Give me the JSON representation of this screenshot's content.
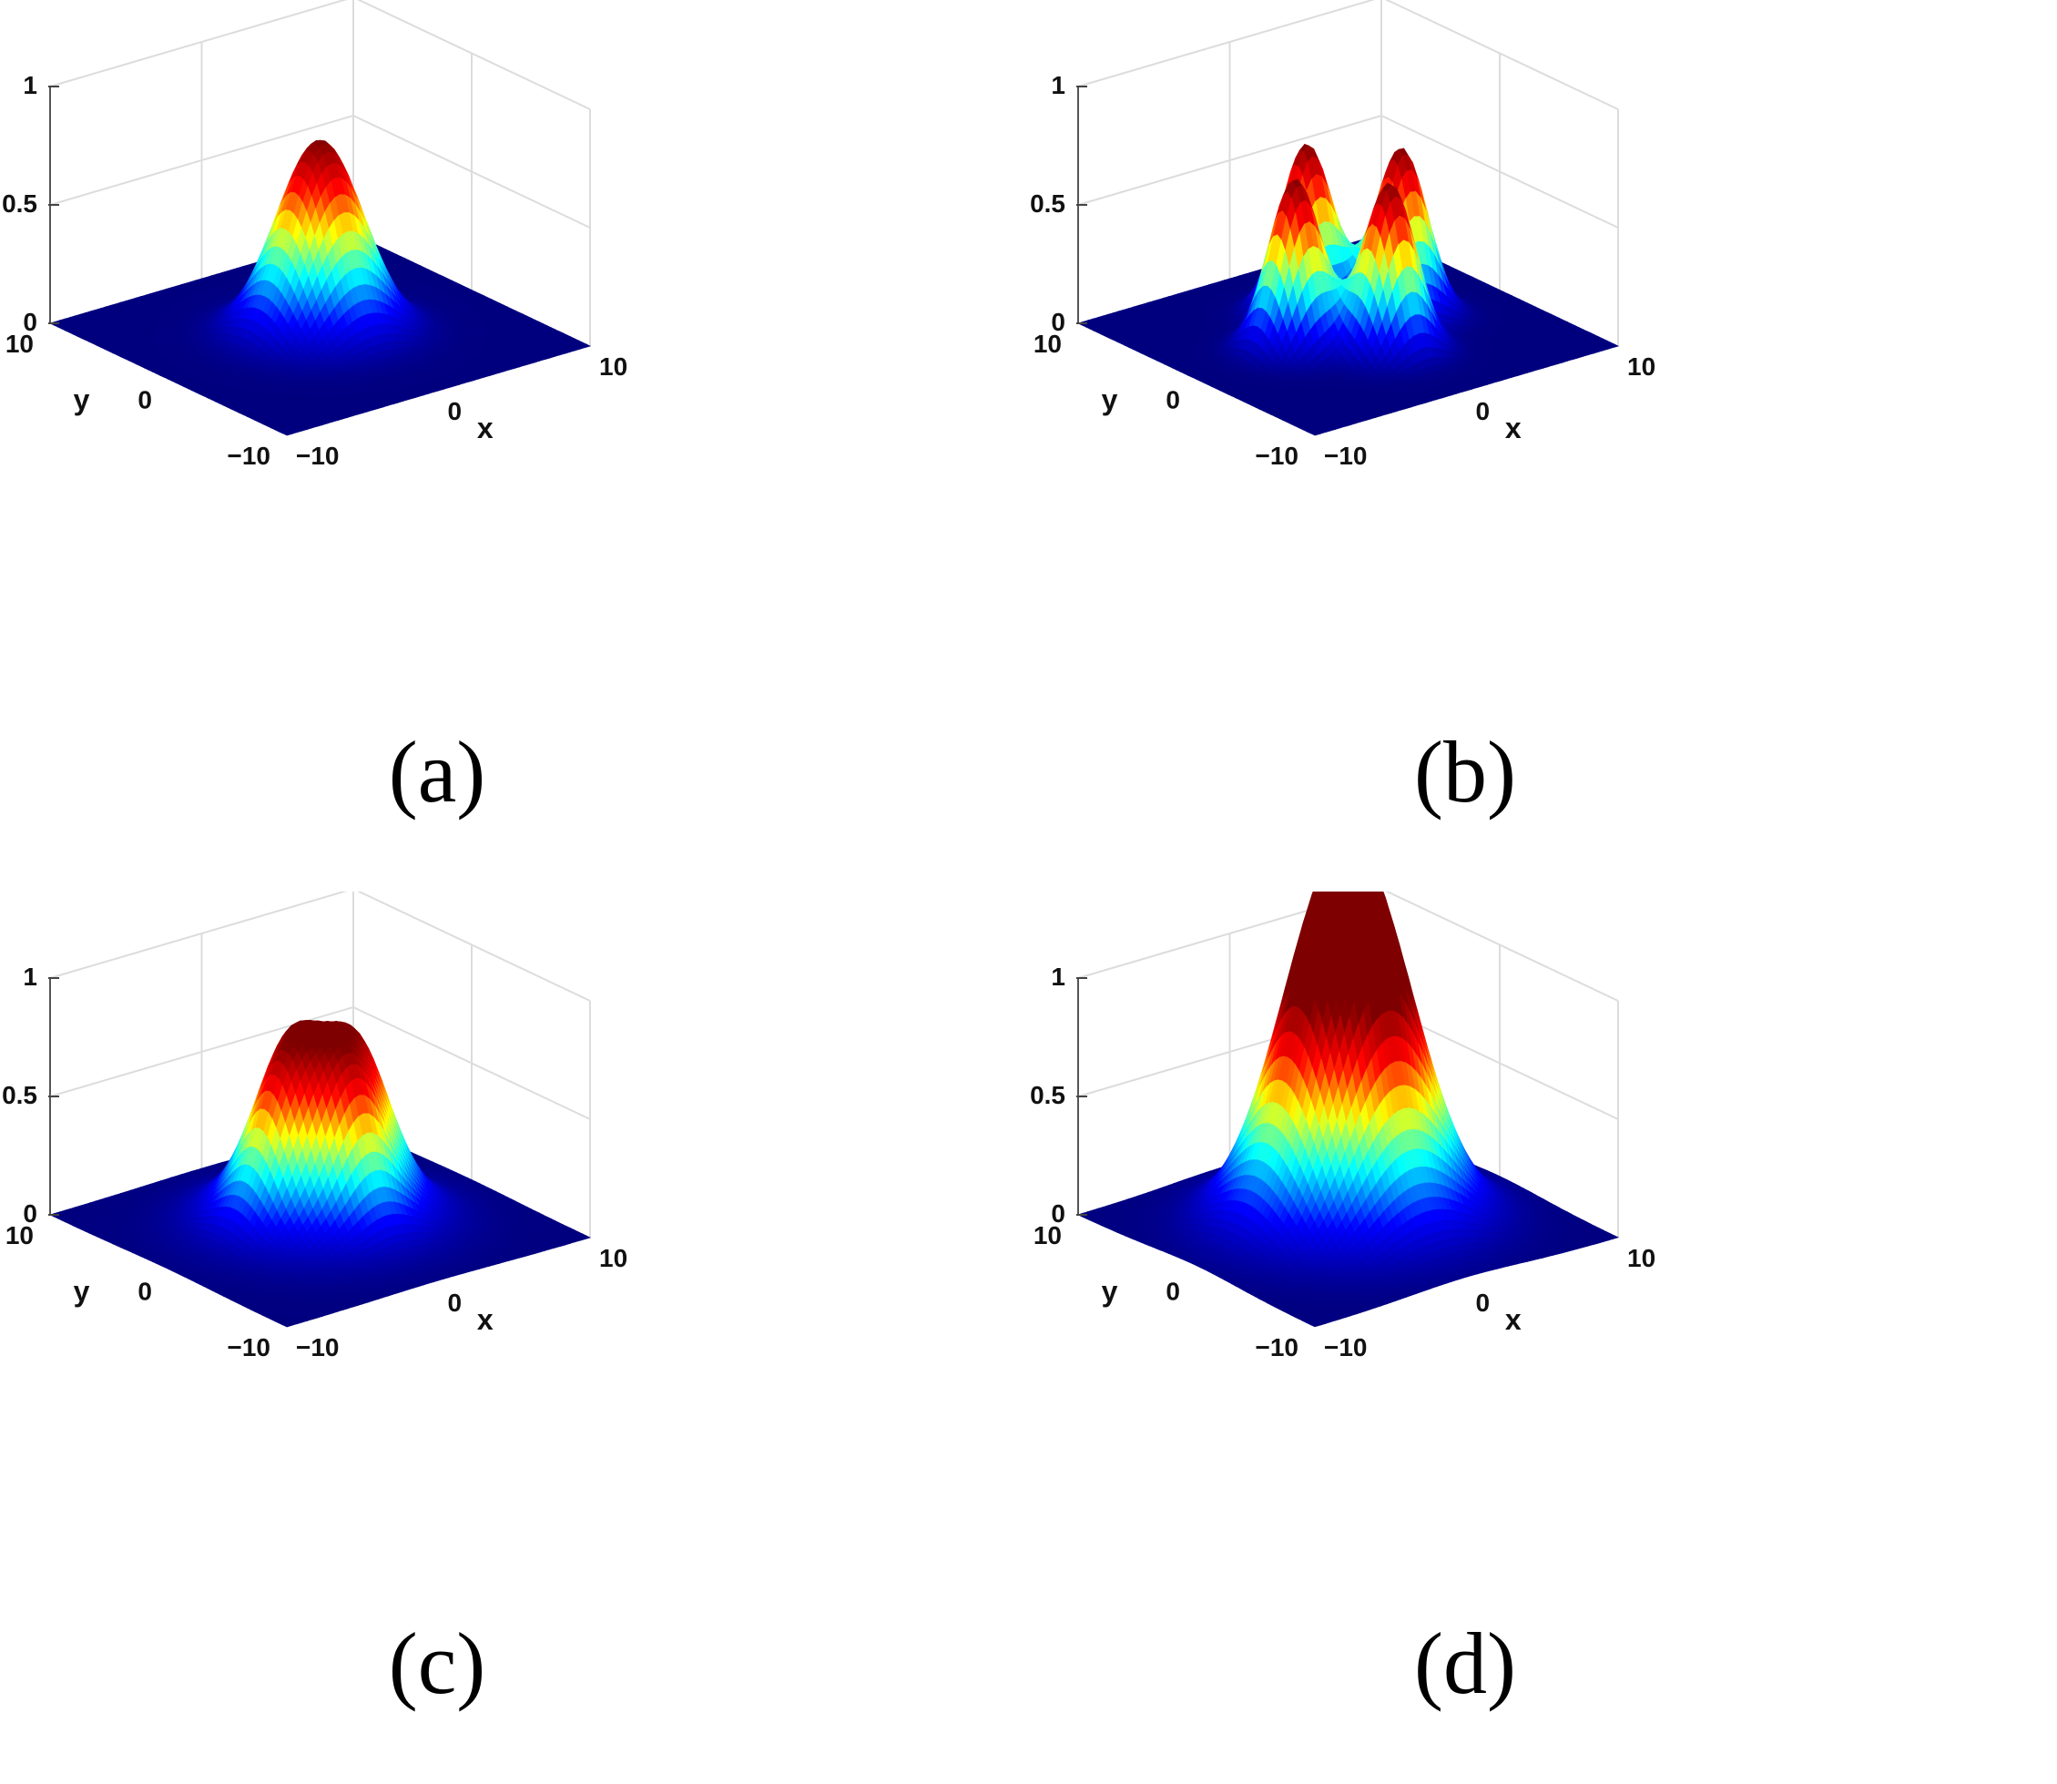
{
  "chart_data": [
    {
      "type": "surface",
      "panel": "a",
      "caption": "(a)",
      "xlabel": "x",
      "ylabel": "y",
      "xlim": [
        -10,
        10
      ],
      "ylim": [
        -10,
        10
      ],
      "zlim": [
        0,
        1
      ],
      "x_ticks": [
        "−10",
        "0",
        "10"
      ],
      "y_ticks": [
        "−10",
        "0",
        "10"
      ],
      "z_ticks": [
        "0",
        "0.5",
        "1"
      ],
      "colormap": [
        "#00007f",
        "#0000ff",
        "#00ffff",
        "#ffff00",
        "#ff0000",
        "#7f0000"
      ],
      "peaks": [
        {
          "x": 0,
          "y": 0,
          "height": 0.82,
          "width": 2.3
        }
      ],
      "max_value": 0.82
    },
    {
      "type": "surface",
      "panel": "b",
      "caption": "(b)",
      "xlabel": "x",
      "ylabel": "y",
      "xlim": [
        -10,
        10
      ],
      "ylim": [
        -10,
        10
      ],
      "zlim": [
        0,
        1
      ],
      "x_ticks": [
        "−10",
        "0",
        "10"
      ],
      "y_ticks": [
        "−10",
        "0",
        "10"
      ],
      "z_ticks": [
        "0",
        "0.5",
        "1"
      ],
      "colormap": [
        "#00007f",
        "#0000ff",
        "#00ffff",
        "#ffff00",
        "#ff0000",
        "#7f0000"
      ],
      "peaks": [
        {
          "x": 0,
          "y": 3.5,
          "height": 0.72,
          "width": 1.4
        },
        {
          "x": 3.5,
          "y": 0,
          "height": 0.72,
          "width": 1.4
        },
        {
          "x": 0,
          "y": -3.5,
          "height": 0.72,
          "width": 1.4
        },
        {
          "x": -3.5,
          "y": 0,
          "height": 0.72,
          "width": 1.4
        }
      ],
      "max_value": 0.72
    },
    {
      "type": "surface",
      "panel": "c",
      "caption": "(c)",
      "xlabel": "x",
      "ylabel": "y",
      "xlim": [
        -10,
        10
      ],
      "ylim": [
        -10,
        10
      ],
      "zlim": [
        0,
        1
      ],
      "x_ticks": [
        "−10",
        "0",
        "10"
      ],
      "y_ticks": [
        "−10",
        "0",
        "10"
      ],
      "z_ticks": [
        "0",
        "0.5",
        "1"
      ],
      "colormap": [
        "#00007f",
        "#0000ff",
        "#00ffff",
        "#ffff00",
        "#ff0000",
        "#7f0000"
      ],
      "peaks": [
        {
          "x": 0,
          "y": 0,
          "height": 0.45,
          "width": 3.5
        },
        {
          "x": 0,
          "y": 2.6,
          "height": 0.36,
          "width": 1.6
        },
        {
          "x": 2.6,
          "y": 0,
          "height": 0.36,
          "width": 1.6
        },
        {
          "x": 0,
          "y": -2.6,
          "height": 0.36,
          "width": 1.6
        },
        {
          "x": -2.6,
          "y": 0,
          "height": 0.36,
          "width": 1.6
        }
      ],
      "max_value": 0.8
    },
    {
      "type": "surface",
      "panel": "d",
      "caption": "(d)",
      "xlabel": "x",
      "ylabel": "y",
      "xlim": [
        -10,
        10
      ],
      "ylim": [
        -10,
        10
      ],
      "zlim": [
        0,
        1
      ],
      "x_ticks": [
        "−10",
        "0",
        "10"
      ],
      "y_ticks": [
        "−10",
        "0",
        "10"
      ],
      "z_ticks": [
        "0",
        "0.5",
        "1"
      ],
      "colormap": [
        "#00007f",
        "#0000ff",
        "#00ffff",
        "#ffff00",
        "#ff0000",
        "#7f0000"
      ],
      "peaks": [
        {
          "x": 0,
          "y": 0,
          "height": 0.6,
          "width": 3.8
        },
        {
          "x": 0,
          "y": 2.0,
          "height": 0.35,
          "width": 2.6
        },
        {
          "x": 2.0,
          "y": 0,
          "height": 0.35,
          "width": 2.6
        },
        {
          "x": 0,
          "y": -2.0,
          "height": 0.35,
          "width": 2.6
        },
        {
          "x": -2.0,
          "y": 0,
          "height": 0.35,
          "width": 2.6
        }
      ],
      "max_value": 1.0
    }
  ]
}
